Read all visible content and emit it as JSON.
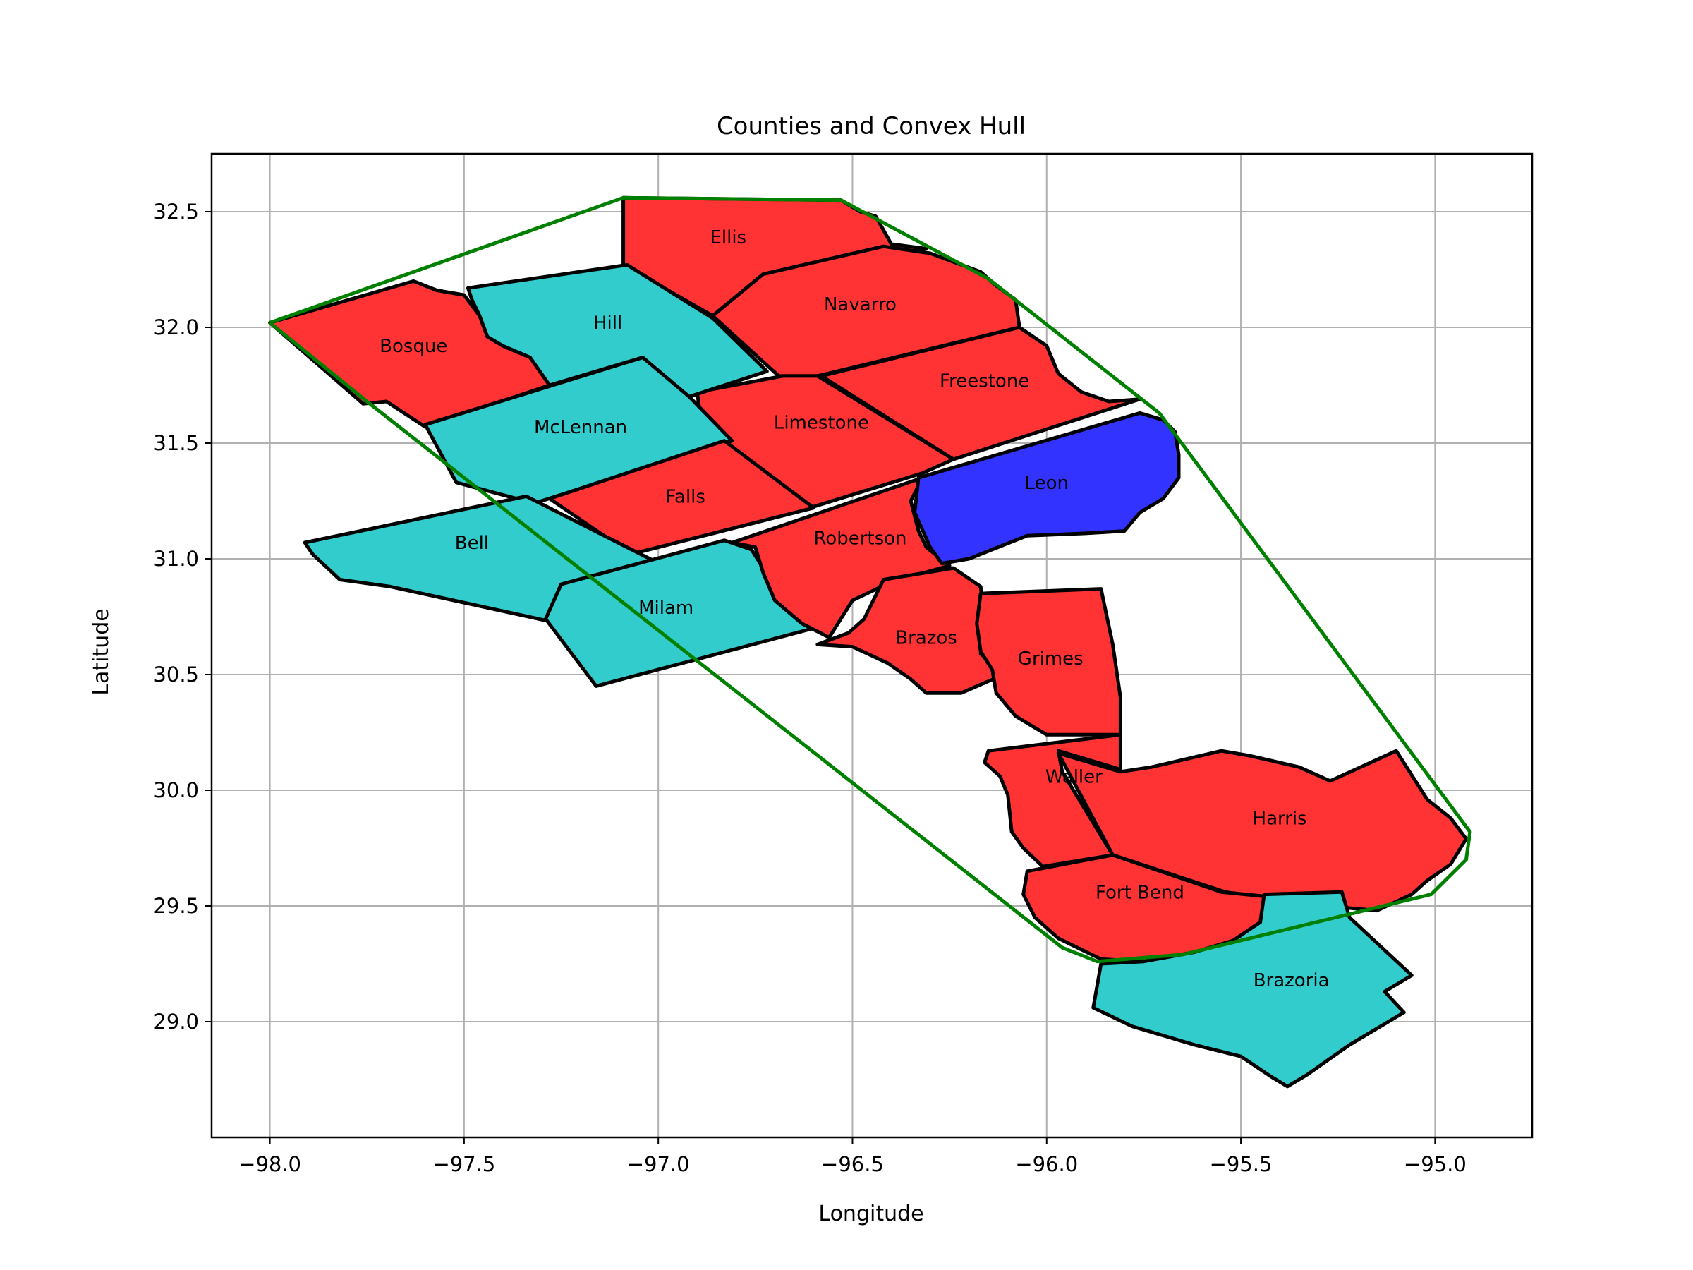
{
  "title": "Counties and Convex Hull",
  "xlabel": "Longitude",
  "ylabel": "Latitude",
  "colors": {
    "red": "#ff3333",
    "cyan": "#33cccc",
    "blue": "#3333ff",
    "hull": "#008000",
    "grid": "#b0b0b0"
  },
  "chart_data": {
    "type": "map",
    "xlim": [
      -98.15,
      -94.75
    ],
    "ylim": [
      28.5,
      32.75
    ],
    "grid": true,
    "xticks": [
      {
        "value": -98.0,
        "label": "−98.0"
      },
      {
        "value": -97.5,
        "label": "−97.5"
      },
      {
        "value": -97.0,
        "label": "−97.0"
      },
      {
        "value": -96.5,
        "label": "−96.5"
      },
      {
        "value": -96.0,
        "label": "−96.0"
      },
      {
        "value": -95.5,
        "label": "−95.5"
      },
      {
        "value": -95.0,
        "label": "−95.0"
      }
    ],
    "yticks": [
      {
        "value": 29.0,
        "label": "29.0"
      },
      {
        "value": 29.5,
        "label": "29.5"
      },
      {
        "value": 30.0,
        "label": "30.0"
      },
      {
        "value": 30.5,
        "label": "30.5"
      },
      {
        "value": 31.0,
        "label": "31.0"
      },
      {
        "value": 31.5,
        "label": "31.5"
      },
      {
        "value": 32.0,
        "label": "32.0"
      },
      {
        "value": 32.5,
        "label": "32.5"
      }
    ],
    "counties": [
      {
        "name": "Ellis",
        "color": "red",
        "label": [
          -96.82,
          32.39
        ],
        "points": [
          [
            -97.09,
            32.56
          ],
          [
            -96.53,
            32.55
          ],
          [
            -96.48,
            32.5
          ],
          [
            -96.44,
            32.48
          ],
          [
            -96.4,
            32.36
          ],
          [
            -96.31,
            32.34
          ],
          [
            -96.73,
            32.23
          ],
          [
            -96.86,
            32.05
          ],
          [
            -97.09,
            32.27
          ]
        ]
      },
      {
        "name": "Navarro",
        "color": "red",
        "label": [
          -96.48,
          32.1
        ],
        "points": [
          [
            -96.86,
            32.05
          ],
          [
            -96.73,
            32.23
          ],
          [
            -96.42,
            32.35
          ],
          [
            -96.3,
            32.32
          ],
          [
            -96.17,
            32.24
          ],
          [
            -96.13,
            32.18
          ],
          [
            -96.08,
            32.12
          ],
          [
            -96.07,
            32.0
          ],
          [
            -96.59,
            31.79
          ],
          [
            -96.69,
            31.79
          ]
        ]
      },
      {
        "name": "Freestone",
        "color": "red",
        "label": [
          -96.16,
          31.77
        ],
        "points": [
          [
            -96.58,
            31.79
          ],
          [
            -96.07,
            32.0
          ],
          [
            -96.0,
            31.92
          ],
          [
            -95.97,
            31.8
          ],
          [
            -95.91,
            31.72
          ],
          [
            -95.84,
            31.68
          ],
          [
            -95.76,
            31.69
          ],
          [
            -96.24,
            31.43
          ]
        ]
      },
      {
        "name": "Limestone",
        "color": "red",
        "label": [
          -96.58,
          31.59
        ],
        "points": [
          [
            -96.9,
            31.72
          ],
          [
            -96.68,
            31.79
          ],
          [
            -96.59,
            31.79
          ],
          [
            -96.24,
            31.43
          ],
          [
            -96.32,
            31.37
          ],
          [
            -96.61,
            31.22
          ],
          [
            -96.82,
            31.42
          ],
          [
            -96.88,
            31.48
          ]
        ]
      },
      {
        "name": "Bosque",
        "color": "red",
        "label": [
          -97.63,
          31.92
        ],
        "points": [
          [
            -98.0,
            32.02
          ],
          [
            -97.63,
            32.2
          ],
          [
            -97.57,
            32.16
          ],
          [
            -97.5,
            32.14
          ],
          [
            -97.46,
            32.05
          ],
          [
            -97.44,
            31.96
          ],
          [
            -97.4,
            31.92
          ],
          [
            -97.33,
            31.87
          ],
          [
            -97.28,
            31.75
          ],
          [
            -97.6,
            31.57
          ],
          [
            -97.7,
            31.68
          ],
          [
            -97.76,
            31.67
          ]
        ]
      },
      {
        "name": "Hill",
        "color": "cyan",
        "label": [
          -97.13,
          32.02
        ],
        "points": [
          [
            -97.49,
            32.17
          ],
          [
            -97.08,
            32.27
          ],
          [
            -96.86,
            32.04
          ],
          [
            -96.72,
            31.81
          ],
          [
            -96.94,
            31.69
          ],
          [
            -97.04,
            31.87
          ],
          [
            -97.28,
            31.75
          ],
          [
            -97.33,
            31.87
          ],
          [
            -97.4,
            31.92
          ],
          [
            -97.44,
            31.96
          ],
          [
            -97.46,
            32.05
          ],
          [
            -97.48,
            32.12
          ]
        ]
      },
      {
        "name": "McLennan",
        "color": "cyan",
        "label": [
          -97.2,
          31.57
        ],
        "points": [
          [
            -97.6,
            31.58
          ],
          [
            -97.04,
            31.87
          ],
          [
            -96.92,
            31.7
          ],
          [
            -96.81,
            31.51
          ],
          [
            -97.32,
            31.24
          ],
          [
            -97.52,
            31.33
          ]
        ]
      },
      {
        "name": "Falls",
        "color": "red",
        "label": [
          -96.93,
          31.27
        ],
        "points": [
          [
            -96.83,
            31.51
          ],
          [
            -96.6,
            31.22
          ],
          [
            -97.07,
            31.02
          ],
          [
            -97.28,
            31.26
          ]
        ]
      },
      {
        "name": "Bell",
        "color": "cyan",
        "label": [
          -97.48,
          31.07
        ],
        "points": [
          [
            -97.91,
            31.07
          ],
          [
            -97.34,
            31.27
          ],
          [
            -96.88,
            30.88
          ],
          [
            -97.02,
            30.92
          ],
          [
            -97.21,
            30.83
          ],
          [
            -97.28,
            30.73
          ],
          [
            -97.69,
            30.88
          ],
          [
            -97.82,
            30.91
          ],
          [
            -97.89,
            31.02
          ]
        ]
      },
      {
        "name": "Milam",
        "color": "cyan",
        "label": [
          -96.98,
          30.79
        ],
        "points": [
          [
            -97.25,
            30.89
          ],
          [
            -96.83,
            31.08
          ],
          [
            -96.76,
            31.04
          ],
          [
            -96.73,
            30.96
          ],
          [
            -96.71,
            30.86
          ],
          [
            -96.63,
            30.78
          ],
          [
            -96.6,
            30.7
          ],
          [
            -97.16,
            30.45
          ],
          [
            -97.29,
            30.74
          ]
        ]
      },
      {
        "name": "Robertson",
        "color": "red",
        "label": [
          -96.48,
          31.09
        ],
        "points": [
          [
            -96.81,
            31.07
          ],
          [
            -96.32,
            31.35
          ],
          [
            -96.35,
            31.25
          ],
          [
            -96.33,
            31.12
          ],
          [
            -96.31,
            31.05
          ],
          [
            -96.25,
            30.97
          ],
          [
            -96.4,
            30.9
          ],
          [
            -96.5,
            30.82
          ],
          [
            -96.56,
            30.66
          ],
          [
            -96.63,
            30.72
          ],
          [
            -96.7,
            30.82
          ],
          [
            -96.73,
            30.94
          ],
          [
            -96.75,
            31.05
          ]
        ]
      },
      {
        "name": "Leon",
        "color": "blue",
        "label": [
          -96.0,
          31.33
        ],
        "points": [
          [
            -96.33,
            31.35
          ],
          [
            -95.76,
            31.63
          ],
          [
            -95.7,
            31.6
          ],
          [
            -95.67,
            31.55
          ],
          [
            -95.66,
            31.45
          ],
          [
            -95.66,
            31.35
          ],
          [
            -95.7,
            31.26
          ],
          [
            -95.76,
            31.2
          ],
          [
            -95.8,
            31.12
          ],
          [
            -95.9,
            31.11
          ],
          [
            -96.05,
            31.1
          ],
          [
            -96.2,
            31.0
          ],
          [
            -96.27,
            30.98
          ],
          [
            -96.3,
            31.05
          ],
          [
            -96.34,
            31.2
          ]
        ]
      },
      {
        "name": "Brazos",
        "color": "red",
        "label": [
          -96.31,
          30.66
        ],
        "points": [
          [
            -96.42,
            30.91
          ],
          [
            -96.24,
            30.96
          ],
          [
            -96.17,
            30.88
          ],
          [
            -96.16,
            30.72
          ],
          [
            -96.17,
            30.59
          ],
          [
            -96.11,
            30.5
          ],
          [
            -96.22,
            30.42
          ],
          [
            -96.31,
            30.42
          ],
          [
            -96.35,
            30.48
          ],
          [
            -96.41,
            30.55
          ],
          [
            -96.5,
            30.62
          ],
          [
            -96.59,
            30.63
          ],
          [
            -96.51,
            30.68
          ],
          [
            -96.47,
            30.74
          ]
        ]
      },
      {
        "name": "Grimes",
        "color": "red",
        "label": [
          -95.99,
          30.57
        ],
        "points": [
          [
            -96.17,
            30.85
          ],
          [
            -95.86,
            30.87
          ],
          [
            -95.83,
            30.63
          ],
          [
            -95.81,
            30.4
          ],
          [
            -95.81,
            30.24
          ],
          [
            -96.0,
            30.24
          ],
          [
            -96.08,
            30.32
          ],
          [
            -96.13,
            30.42
          ],
          [
            -96.14,
            30.52
          ],
          [
            -96.17,
            30.6
          ],
          [
            -96.18,
            30.72
          ]
        ]
      },
      {
        "name": "Waller",
        "color": "red",
        "label": [
          -95.93,
          30.06
        ],
        "points": [
          [
            -96.15,
            30.17
          ],
          [
            -95.81,
            30.24
          ],
          [
            -95.81,
            30.09
          ],
          [
            -95.97,
            30.17
          ],
          [
            -95.96,
            30.08
          ],
          [
            -95.83,
            29.72
          ],
          [
            -96.01,
            29.67
          ],
          [
            -96.06,
            29.75
          ],
          [
            -96.09,
            29.82
          ],
          [
            -96.1,
            29.98
          ],
          [
            -96.12,
            30.06
          ],
          [
            -96.16,
            30.12
          ]
        ]
      },
      {
        "name": "Harris",
        "color": "red",
        "label": [
          -95.4,
          29.88
        ],
        "points": [
          [
            -95.97,
            30.16
          ],
          [
            -95.81,
            30.08
          ],
          [
            -95.73,
            30.1
          ],
          [
            -95.55,
            30.17
          ],
          [
            -95.48,
            30.15
          ],
          [
            -95.35,
            30.1
          ],
          [
            -95.27,
            30.04
          ],
          [
            -95.1,
            30.17
          ],
          [
            -95.02,
            29.96
          ],
          [
            -94.96,
            29.88
          ],
          [
            -94.92,
            29.79
          ],
          [
            -94.96,
            29.68
          ],
          [
            -95.02,
            29.61
          ],
          [
            -95.06,
            29.55
          ],
          [
            -95.15,
            29.48
          ],
          [
            -95.28,
            29.5
          ],
          [
            -95.54,
            29.56
          ],
          [
            -95.83,
            29.72
          ]
        ]
      },
      {
        "name": "Fort Bend",
        "color": "red",
        "label": [
          -95.76,
          29.56
        ],
        "points": [
          [
            -96.05,
            29.65
          ],
          [
            -95.83,
            29.72
          ],
          [
            -95.55,
            29.56
          ],
          [
            -95.43,
            29.54
          ],
          [
            -95.45,
            29.43
          ],
          [
            -95.52,
            29.35
          ],
          [
            -95.62,
            29.3
          ],
          [
            -95.75,
            29.26
          ],
          [
            -95.86,
            29.27
          ],
          [
            -95.97,
            29.36
          ],
          [
            -96.03,
            29.45
          ],
          [
            -96.06,
            29.55
          ]
        ]
      },
      {
        "name": "Brazoria",
        "color": "cyan",
        "label": [
          -95.37,
          29.18
        ],
        "points": [
          [
            -95.44,
            29.55
          ],
          [
            -95.24,
            29.56
          ],
          [
            -95.22,
            29.45
          ],
          [
            -95.06,
            29.2
          ],
          [
            -95.13,
            29.13
          ],
          [
            -95.08,
            29.04
          ],
          [
            -95.22,
            28.9
          ],
          [
            -95.33,
            28.77
          ],
          [
            -95.38,
            28.72
          ],
          [
            -95.42,
            28.76
          ],
          [
            -95.5,
            28.85
          ],
          [
            -95.62,
            28.9
          ],
          [
            -95.78,
            28.98
          ],
          [
            -95.88,
            29.06
          ],
          [
            -95.86,
            29.25
          ],
          [
            -95.75,
            29.26
          ],
          [
            -95.62,
            29.3
          ],
          [
            -95.52,
            29.35
          ],
          [
            -95.45,
            29.43
          ]
        ]
      }
    ],
    "hull": [
      [
        -98.0,
        32.02
      ],
      [
        -97.09,
        32.56
      ],
      [
        -96.53,
        32.55
      ],
      [
        -96.15,
        32.21
      ],
      [
        -95.71,
        31.63
      ],
      [
        -94.91,
        29.82
      ],
      [
        -94.92,
        29.7
      ],
      [
        -95.01,
        29.55
      ],
      [
        -95.65,
        29.29
      ],
      [
        -95.87,
        29.26
      ],
      [
        -95.96,
        29.32
      ],
      [
        -97.75,
        31.68
      ],
      [
        -98.0,
        32.02
      ]
    ]
  }
}
